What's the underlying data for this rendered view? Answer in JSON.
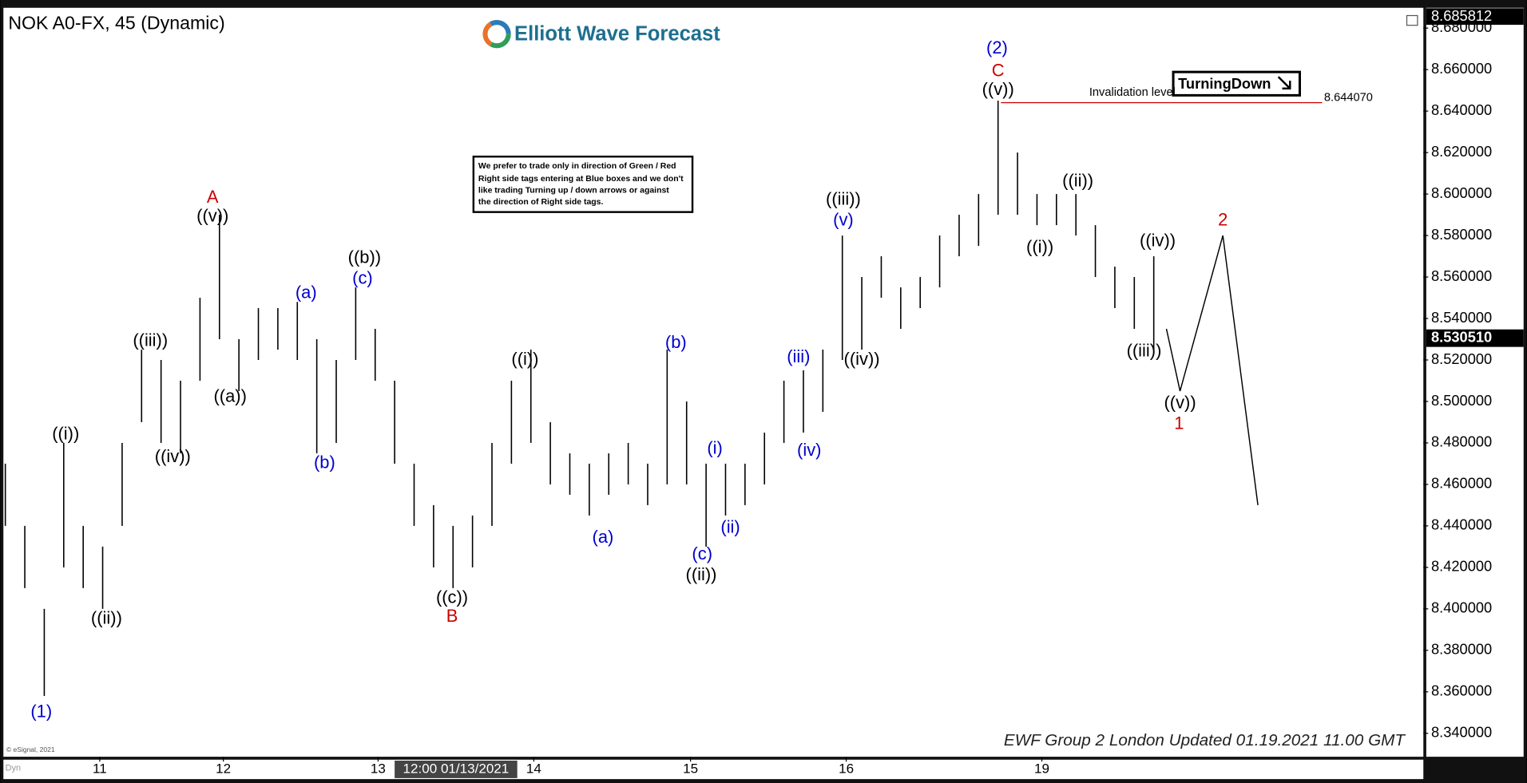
{
  "chart_data": {
    "type": "ohlc",
    "title": "NOK A0-FX, 45 (Dynamic)",
    "logo": "Elliott Wave Forecast",
    "note": [
      "We prefer to trade only in direction of Green / Red",
      "Right side tags entering at Blue boxes and we don't",
      "like trading Turning up / down arrows or against",
      "the direction of Right side tags."
    ],
    "signal": "TurningDown",
    "footer": "EWF Group 2 London Updated 01.19.2021 11.00 GMT",
    "copyright": "© eSignal, 2021",
    "mode": "Dyn",
    "color": "#000000",
    "x": [
      0.5,
      2.5,
      4.5,
      6.5,
      8.5,
      10.5,
      12.5,
      14.5,
      16.5,
      18.5,
      20.5,
      22.5,
      24.5,
      26.5,
      28.5,
      30.5,
      32.5,
      34.5,
      36.5,
      38.5,
      40.5,
      42.5,
      44.5,
      46.5,
      48.5,
      50.5,
      52.5,
      54.5,
      56.5,
      58.5,
      60.5,
      62.5,
      64.5,
      66.5,
      68.5,
      70.5,
      72.5,
      74.5,
      76.5,
      78.5,
      80.5,
      82.5,
      84.5,
      86.5,
      88.5,
      90.5,
      92.5,
      94.5,
      96.5,
      98.5,
      100.5,
      102.5,
      104.5,
      106.5,
      108.5,
      110.5,
      112.5,
      114.5,
      116.5,
      118.5
    ],
    "high": [
      8.47,
      8.44,
      8.4,
      8.48,
      8.44,
      8.43,
      8.48,
      8.525,
      8.52,
      8.51,
      8.55,
      8.59,
      8.53,
      8.545,
      8.545,
      8.548,
      8.53,
      8.52,
      8.555,
      8.535,
      8.51,
      8.47,
      8.45,
      8.44,
      8.445,
      8.48,
      8.51,
      8.525,
      8.49,
      8.475,
      8.47,
      8.475,
      8.48,
      8.47,
      8.525,
      8.5,
      8.47,
      8.47,
      8.47,
      8.485,
      8.51,
      8.515,
      8.525,
      8.58,
      8.56,
      8.57,
      8.555,
      8.56,
      8.58,
      8.59,
      8.6,
      8.645,
      8.62,
      8.6,
      8.6,
      8.6,
      8.585,
      8.565,
      8.56,
      8.57
    ],
    "low": [
      8.44,
      8.41,
      8.358,
      8.42,
      8.41,
      8.4,
      8.44,
      8.49,
      8.48,
      8.475,
      8.51,
      8.53,
      8.505,
      8.52,
      8.525,
      8.52,
      8.475,
      8.48,
      8.52,
      8.51,
      8.47,
      8.44,
      8.42,
      8.41,
      8.42,
      8.44,
      8.47,
      8.48,
      8.46,
      8.455,
      8.445,
      8.455,
      8.46,
      8.45,
      8.46,
      8.46,
      8.43,
      8.445,
      8.45,
      8.46,
      8.48,
      8.485,
      8.495,
      8.52,
      8.525,
      8.55,
      8.535,
      8.545,
      8.555,
      8.57,
      8.575,
      8.59,
      8.59,
      8.585,
      8.585,
      8.58,
      8.56,
      8.545,
      8.535,
      8.525
    ],
    "projection": {
      "x": [
        119.8,
        121.2,
        125.6,
        129.2
      ],
      "values": [
        8.535,
        8.505,
        8.58,
        8.45
      ]
    },
    "invalidation": {
      "label": "Invalidation level",
      "value": 8.64407,
      "value_label": "8.644070",
      "x": [
        102.8,
        135.8
      ],
      "color": "#cc0000"
    },
    "last_price": {
      "value": 8.53051,
      "label": "8.530510"
    },
    "high_price": {
      "value": 8.685812,
      "label": "8.685812"
    },
    "x_cursor": {
      "value": 46.8,
      "label": "12:00 01/13/2021"
    },
    "wave_labels": [
      {
        "text": "(1)",
        "x": 4.2,
        "y": 8.35,
        "color": "#0000cc"
      },
      {
        "text": "((i))",
        "x": 6.7,
        "y": 8.484,
        "color": "#000000"
      },
      {
        "text": "((ii))",
        "x": 10.9,
        "y": 8.395,
        "color": "#000000"
      },
      {
        "text": "((iii))",
        "x": 15.4,
        "y": 8.529,
        "color": "#000000"
      },
      {
        "text": "((iv))",
        "x": 17.7,
        "y": 8.473,
        "color": "#000000"
      },
      {
        "text": "A",
        "x": 21.8,
        "y": 8.598,
        "color": "#cc0000"
      },
      {
        "text": "((v))",
        "x": 21.8,
        "y": 8.589,
        "color": "#000000"
      },
      {
        "text": "((a))",
        "x": 23.6,
        "y": 8.502,
        "color": "#000000"
      },
      {
        "text": "(a)",
        "x": 31.4,
        "y": 8.552,
        "color": "#0000cc"
      },
      {
        "text": "(b)",
        "x": 33.3,
        "y": 8.47,
        "color": "#0000cc"
      },
      {
        "text": "((b))",
        "x": 37.4,
        "y": 8.569,
        "color": "#000000"
      },
      {
        "text": "(c)",
        "x": 37.2,
        "y": 8.559,
        "color": "#0000cc"
      },
      {
        "text": "((c))",
        "x": 46.4,
        "y": 8.405,
        "color": "#000000"
      },
      {
        "text": "B",
        "x": 46.4,
        "y": 8.396,
        "color": "#cc0000"
      },
      {
        "text": "((i))",
        "x": 53.9,
        "y": 8.52,
        "color": "#000000"
      },
      {
        "text": "(a)",
        "x": 61.9,
        "y": 8.434,
        "color": "#0000cc"
      },
      {
        "text": "(b)",
        "x": 69.4,
        "y": 8.528,
        "color": "#0000cc"
      },
      {
        "text": "(i)",
        "x": 73.4,
        "y": 8.477,
        "color": "#0000cc"
      },
      {
        "text": "(ii)",
        "x": 75.0,
        "y": 8.439,
        "color": "#0000cc"
      },
      {
        "text": "(c)",
        "x": 72.1,
        "y": 8.426,
        "color": "#0000cc"
      },
      {
        "text": "((ii))",
        "x": 72.0,
        "y": 8.416,
        "color": "#000000"
      },
      {
        "text": "(iii)",
        "x": 82.0,
        "y": 8.521,
        "color": "#0000cc"
      },
      {
        "text": "(iv)",
        "x": 83.1,
        "y": 8.476,
        "color": "#0000cc"
      },
      {
        "text": "((iii))",
        "x": 86.6,
        "y": 8.597,
        "color": "#000000"
      },
      {
        "text": "(v)",
        "x": 86.6,
        "y": 8.587,
        "color": "#0000cc"
      },
      {
        "text": "((iv))",
        "x": 88.5,
        "y": 8.52,
        "color": "#000000"
      },
      {
        "text": "(2)",
        "x": 102.4,
        "y": 8.67,
        "color": "#0000cc"
      },
      {
        "text": "C",
        "x": 102.5,
        "y": 8.659,
        "color": "#cc0000"
      },
      {
        "text": "((v))",
        "x": 102.5,
        "y": 8.65,
        "color": "#000000"
      },
      {
        "text": "((i))",
        "x": 106.8,
        "y": 8.574,
        "color": "#000000"
      },
      {
        "text": "((ii))",
        "x": 110.7,
        "y": 8.606,
        "color": "#000000"
      },
      {
        "text": "((iv))",
        "x": 118.9,
        "y": 8.577,
        "color": "#000000"
      },
      {
        "text": "((iii))",
        "x": 117.5,
        "y": 8.524,
        "color": "#000000"
      },
      {
        "text": "((v))",
        "x": 121.2,
        "y": 8.499,
        "color": "#000000"
      },
      {
        "text": "1",
        "x": 121.1,
        "y": 8.489,
        "color": "#cc0000"
      },
      {
        "text": "2",
        "x": 125.6,
        "y": 8.587,
        "color": "#cc0000"
      }
    ],
    "xlim": [
      0,
      146.2
    ],
    "ylim": [
      8.3287,
      8.6898
    ],
    "xticks": [
      {
        "value": 10.2,
        "label": "11"
      },
      {
        "value": 22.9,
        "label": "12"
      },
      {
        "value": 38.8,
        "label": "13"
      },
      {
        "value": 54.8,
        "label": "14"
      },
      {
        "value": 70.9,
        "label": "15"
      },
      {
        "value": 86.9,
        "label": "16"
      },
      {
        "value": 107,
        "label": "19"
      }
    ],
    "yticks": [
      {
        "value": 8.34,
        "label": "8.340000"
      },
      {
        "value": 8.36,
        "label": "8.360000"
      },
      {
        "value": 8.38,
        "label": "8.380000"
      },
      {
        "value": 8.4,
        "label": "8.400000"
      },
      {
        "value": 8.42,
        "label": "8.420000"
      },
      {
        "value": 8.44,
        "label": "8.440000"
      },
      {
        "value": 8.46,
        "label": "8.460000"
      },
      {
        "value": 8.48,
        "label": "8.480000"
      },
      {
        "value": 8.5,
        "label": "8.500000"
      },
      {
        "value": 8.52,
        "label": "8.520000"
      },
      {
        "value": 8.54,
        "label": "8.540000"
      },
      {
        "value": 8.56,
        "label": "8.560000"
      },
      {
        "value": 8.58,
        "label": "8.580000"
      },
      {
        "value": 8.6,
        "label": "8.600000"
      },
      {
        "value": 8.62,
        "label": "8.620000"
      },
      {
        "value": 8.64,
        "label": "8.640000"
      },
      {
        "value": 8.66,
        "label": "8.660000"
      },
      {
        "value": 8.68,
        "label": "8.680000"
      }
    ]
  }
}
